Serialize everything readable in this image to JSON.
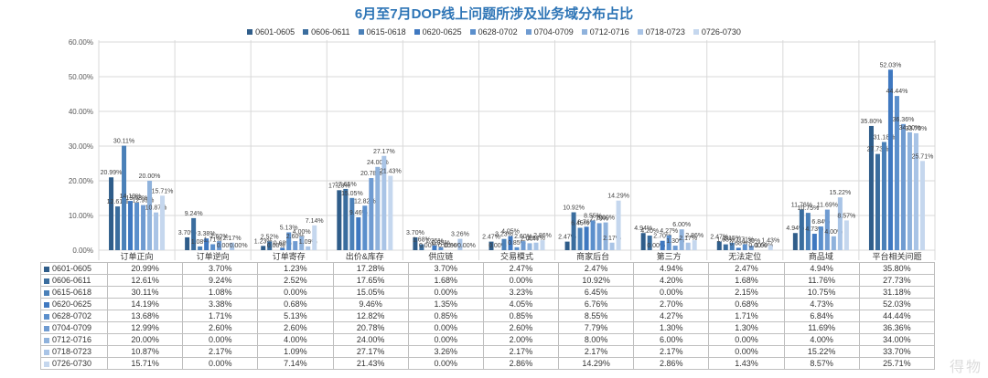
{
  "chart_data": {
    "type": "bar",
    "title": "6月至7月DOP线上问题所涉及业务域分布占比",
    "ylim": [
      0,
      60
    ],
    "yticks": [
      "0.00%",
      "10.00%",
      "20.00%",
      "30.00%",
      "40.00%",
      "50.00%",
      "60.00%"
    ],
    "grid": true,
    "legend_position": "top",
    "categories": [
      "订单正向",
      "订单逆向",
      "订单寄存",
      "出价&库存",
      "供应链",
      "交易模式",
      "商家后台",
      "第三方",
      "无法定位",
      "商品域",
      "平台相关问题"
    ],
    "series": [
      {
        "name": "0601-0605",
        "color": "#2F5D8A",
        "values": [
          20.99,
          3.7,
          1.23,
          17.28,
          3.7,
          2.47,
          2.47,
          4.94,
          2.47,
          4.94,
          35.8
        ],
        "labels": [
          "20.99%",
          "3.70%",
          "1.23%",
          "17.28%",
          "3.70%",
          "2.47%",
          "2.47%",
          "4.94%",
          "2.47%",
          "4.94%",
          "35.80%"
        ]
      },
      {
        "name": "0606-0611",
        "color": "#3A6D9E",
        "values": [
          12.61,
          9.24,
          2.52,
          17.65,
          1.68,
          0.0,
          10.92,
          4.2,
          1.68,
          11.76,
          27.73
        ],
        "labels": [
          "12.61%",
          "9.24%",
          "2.52%",
          "17.65%",
          "1.68%",
          "0.00%",
          "10.92%",
          "4.20%",
          "1.68%",
          "11.76%",
          "27.73%"
        ]
      },
      {
        "name": "0615-0618",
        "color": "#4A80B8",
        "values": [
          30.11,
          1.08,
          0.0,
          15.05,
          0.0,
          3.23,
          6.45,
          0.0,
          2.15,
          10.75,
          31.18
        ],
        "labels": [
          "30.11%",
          "1.08%",
          "0.00%",
          "15.05%",
          "0.00%",
          "3.23%",
          "6.45%",
          "0.00%",
          "2.15%",
          "10.75%",
          "31.18%"
        ]
      },
      {
        "name": "0620-0625",
        "color": "#3F78C0",
        "values": [
          14.19,
          3.38,
          0.68,
          9.46,
          1.35,
          4.05,
          6.76,
          2.7,
          0.68,
          4.73,
          52.03
        ],
        "labels": [
          "14.19%",
          "3.38%",
          "0.68%",
          "9.46%",
          "1.35%",
          "4.05%",
          "6.76%",
          "2.70%",
          "0.68%",
          "4.73%",
          "52.03%"
        ]
      },
      {
        "name": "0628-0702",
        "color": "#5B8FCC",
        "values": [
          13.68,
          1.71,
          5.13,
          12.82,
          0.85,
          0.85,
          8.55,
          4.27,
          1.71,
          6.84,
          44.44
        ],
        "labels": [
          "13.68%",
          "1.71%",
          "5.13%",
          "12.82%",
          "0.85%",
          "0.85%",
          "8.55%",
          "4.27%",
          "1.71%",
          "6.84%",
          "44.44%"
        ]
      },
      {
        "name": "0704-0709",
        "color": "#6F9BD1",
        "values": [
          12.99,
          2.6,
          2.6,
          20.78,
          0.0,
          2.6,
          7.79,
          1.3,
          1.3,
          11.69,
          36.36
        ],
        "labels": [
          "12.99%",
          "2.60%",
          "2.60%",
          "20.78%",
          "0.00%",
          "2.60%",
          "7.79%",
          "1.30%",
          "1.30%",
          "11.69%",
          "36.36%"
        ]
      },
      {
        "name": "0712-0716",
        "color": "#8FB2DC",
        "values": [
          20.0,
          0.0,
          4.0,
          24.0,
          0.0,
          2.0,
          8.0,
          6.0,
          0.0,
          4.0,
          34.0
        ],
        "labels": [
          "20.00%",
          "0.00%",
          "4.00%",
          "24.00%",
          "0.00%",
          "2.00%",
          "8.00%",
          "6.00%",
          "0.00%",
          "4.00%",
          "34.00%"
        ]
      },
      {
        "name": "0718-0723",
        "color": "#A9C4E6",
        "values": [
          10.87,
          2.17,
          1.09,
          27.17,
          3.26,
          2.17,
          2.17,
          2.17,
          0.0,
          15.22,
          33.7
        ],
        "labels": [
          "10.87%",
          "2.17%",
          "1.09%",
          "27.17%",
          "3.26%",
          "2.17%",
          "2.17%",
          "2.17%",
          "0.00%",
          "15.22%",
          "33.70%"
        ]
      },
      {
        "name": "0726-0730",
        "color": "#C5D7EE",
        "values": [
          15.71,
          0.0,
          7.14,
          21.43,
          0.0,
          2.86,
          14.29,
          2.86,
          1.43,
          8.57,
          25.71
        ],
        "labels": [
          "15.71%",
          "0.00%",
          "7.14%",
          "21.43%",
          "0.00%",
          "2.86%",
          "14.29%",
          "2.86%",
          "1.43%",
          "8.57%",
          "25.71%"
        ]
      }
    ]
  },
  "watermark": "得物"
}
